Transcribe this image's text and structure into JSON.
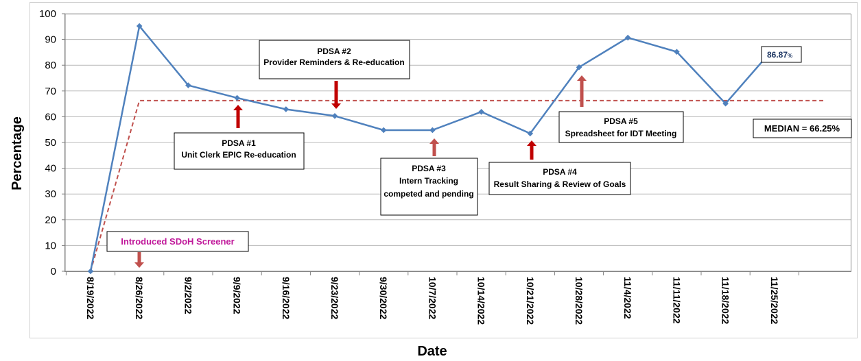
{
  "chart_data": {
    "type": "line",
    "title": "",
    "xlabel": "Date",
    "ylabel": "Percentage",
    "ylim": [
      0,
      100
    ],
    "yticks": [
      0,
      10,
      20,
      30,
      40,
      50,
      60,
      70,
      80,
      90,
      100
    ],
    "categories": [
      "8/19/2022",
      "8/26/2022",
      "9/2/2022",
      "9/9/2022",
      "9/16/2022",
      "9/23/2022",
      "9/30/2022",
      "10/7/2022",
      "10/14/2022",
      "10/21/2022",
      "10/28/2022",
      "11/4/2022",
      "11/11/2022",
      "11/18/2022",
      "11/25/2022"
    ],
    "grid": "horizontal",
    "series": [
      {
        "name": "",
        "color": "#4f81bd",
        "marker": "diamond",
        "values": [
          0,
          95.2,
          72.2,
          67.3,
          62.9,
          60.3,
          54.8,
          54.8,
          61.9,
          53.5,
          79.2,
          90.7,
          85.2,
          65.1,
          86.87
        ]
      }
    ],
    "median": {
      "value": 66.25,
      "color": "#c0504d",
      "style": "dashed",
      "label": "MEDIAN = 66.25%"
    },
    "last_point_label": {
      "value": "86.87",
      "unit": "%"
    },
    "annotations": [
      {
        "id": "sdoh",
        "lines": [
          "Introduced SDoH Screener"
        ],
        "arrow": "down",
        "color": "#c0189a"
      },
      {
        "id": "pdsa1",
        "lines": [
          "PDSA #1",
          "Unit Clerk EPIC Re-education"
        ],
        "arrow": "up"
      },
      {
        "id": "pdsa2",
        "lines": [
          "PDSA #2",
          "Provider Reminders & Re-education"
        ],
        "arrow": "down"
      },
      {
        "id": "pdsa3",
        "lines": [
          "PDSA #3",
          "Intern Tracking",
          "competed and pending"
        ],
        "arrow": "up"
      },
      {
        "id": "pdsa4",
        "lines": [
          "PDSA #4",
          "Result Sharing & Review of Goals"
        ],
        "arrow": "up"
      },
      {
        "id": "pdsa5",
        "lines": [
          "PDSA #5",
          "Spreadsheet for IDT Meeting"
        ],
        "arrow": "up"
      }
    ],
    "colors": {
      "arrow_dark": "#c00000",
      "arrow_light": "#c0504d"
    }
  }
}
